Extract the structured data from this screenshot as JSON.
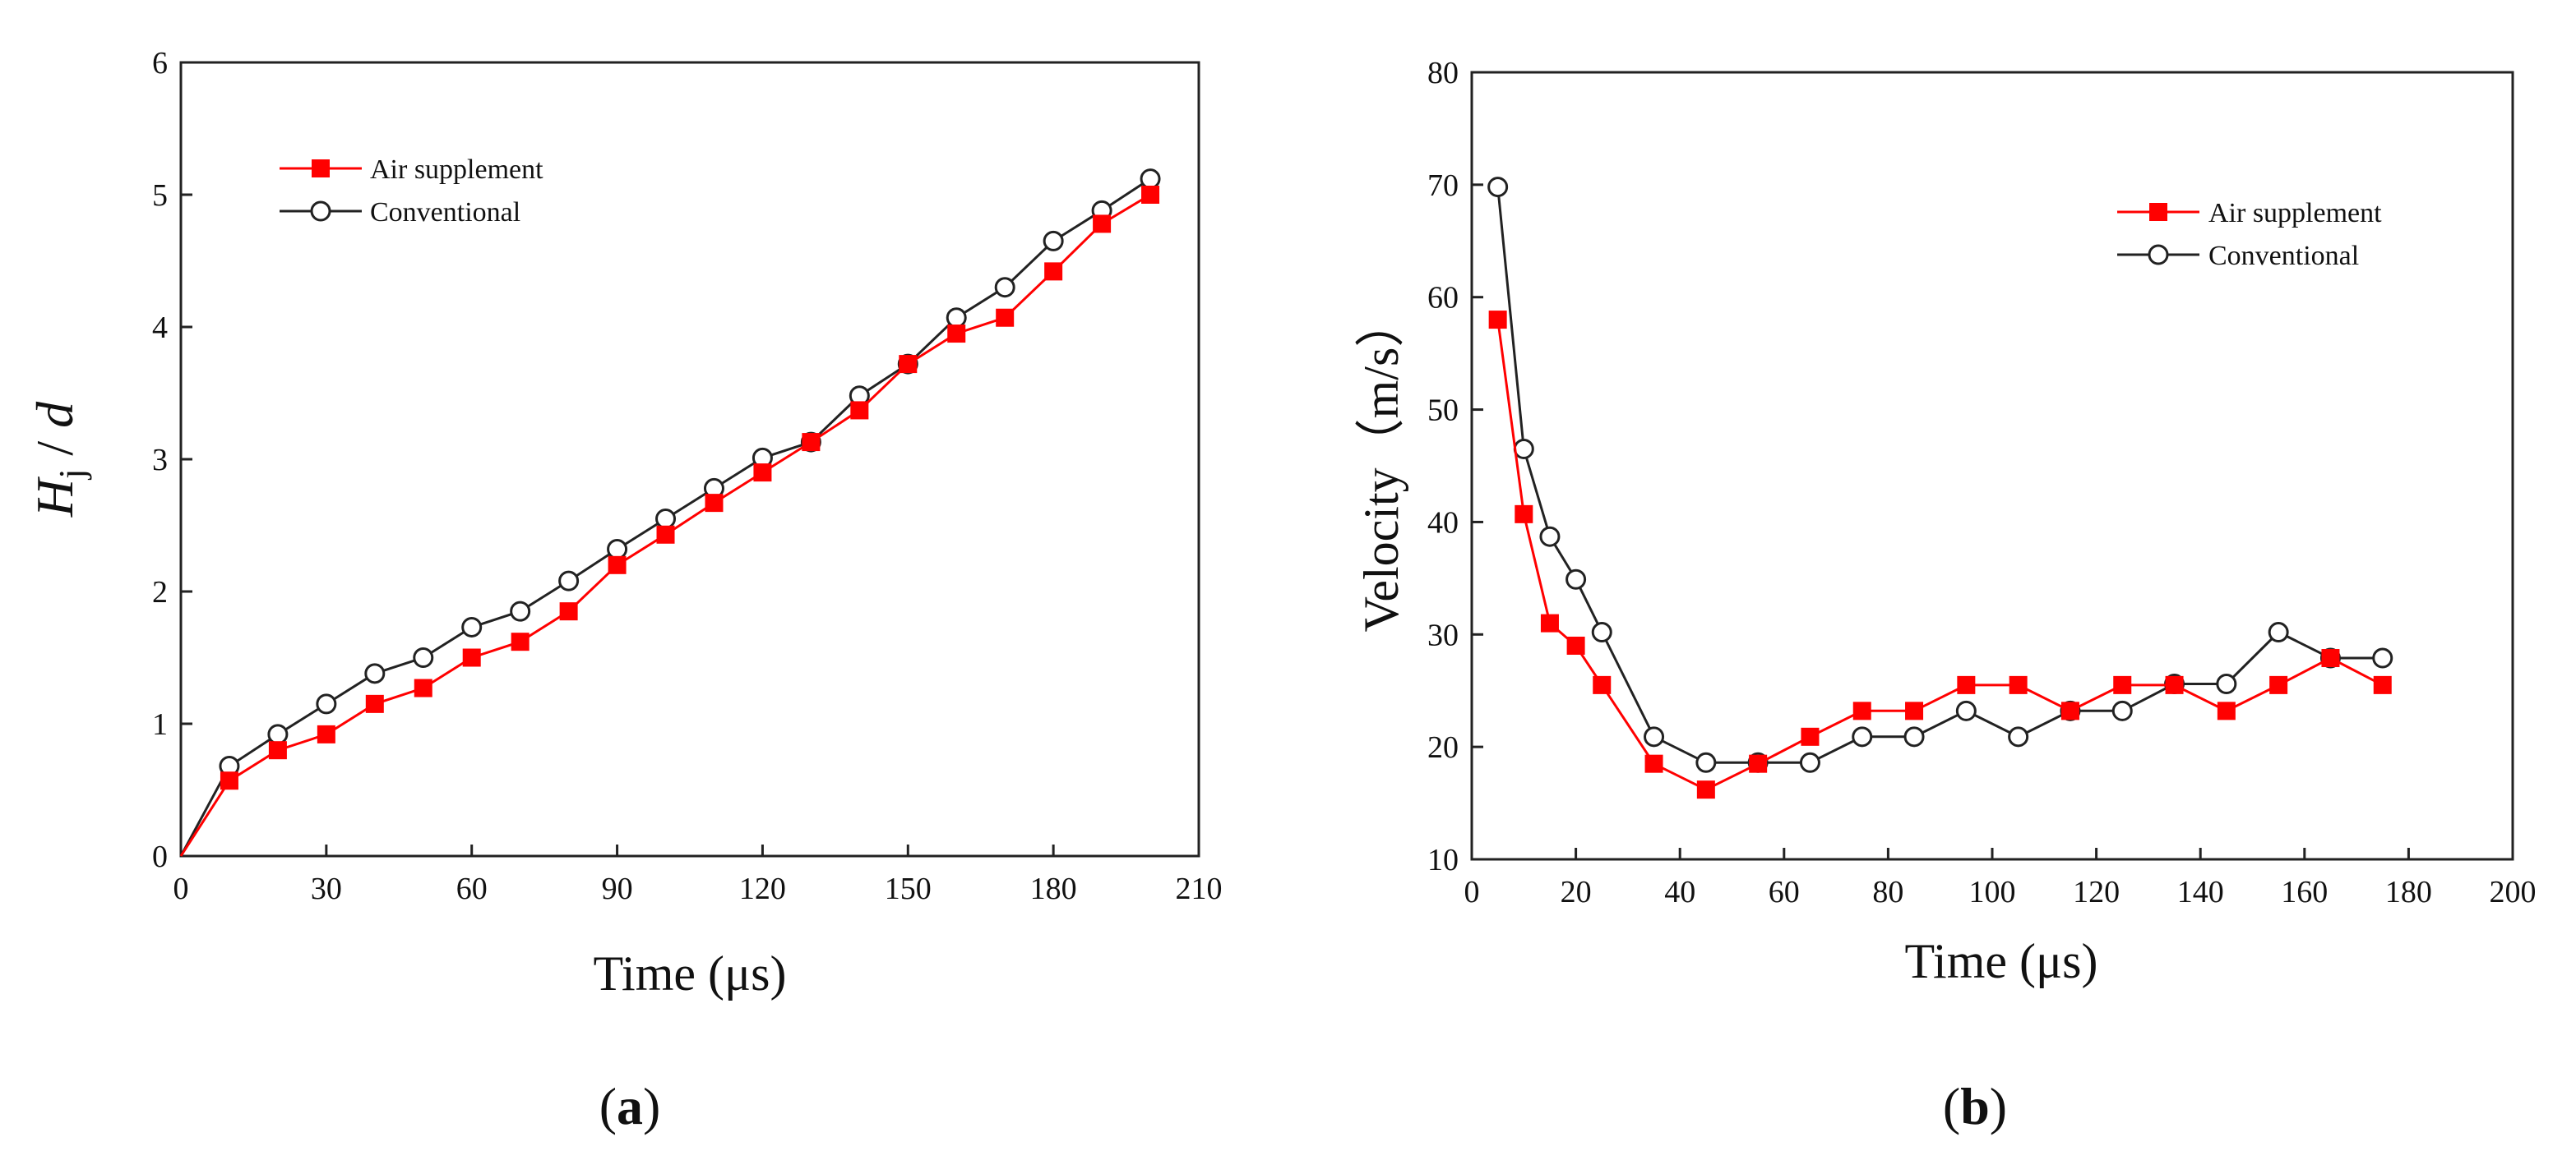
{
  "chart_data": [
    {
      "type": "line",
      "panel_label": "a",
      "xlabel": "Time (μs)",
      "ylabel_main": "H",
      "ylabel_sub": "j",
      "ylabel_rest": " / ",
      "ylabel_d": "d",
      "xlim": [
        0,
        210
      ],
      "ylim": [
        0,
        6
      ],
      "xticks": [
        0,
        30,
        60,
        90,
        120,
        150,
        180,
        210
      ],
      "yticks": [
        0,
        1,
        2,
        3,
        4,
        5,
        6
      ],
      "legend_position": "top-left",
      "series": [
        {
          "name": "Air supplement",
          "color": "#ff0000",
          "marker": "filled-square",
          "x": [
            0,
            10,
            20,
            30,
            40,
            50,
            60,
            70,
            80,
            90,
            100,
            110,
            120,
            130,
            140,
            150,
            160,
            170,
            180,
            190,
            200
          ],
          "y": [
            0,
            0.57,
            0.8,
            0.92,
            1.15,
            1.27,
            1.5,
            1.62,
            1.85,
            2.2,
            2.43,
            2.67,
            2.9,
            3.13,
            3.37,
            3.72,
            3.95,
            4.07,
            4.42,
            4.78,
            5.0
          ]
        },
        {
          "name": "Conventional",
          "color": "#222222",
          "marker": "open-circle",
          "x": [
            0,
            10,
            20,
            30,
            40,
            50,
            60,
            70,
            80,
            90,
            100,
            110,
            120,
            130,
            140,
            150,
            160,
            170,
            180,
            190,
            200
          ],
          "y": [
            0,
            0.68,
            0.92,
            1.15,
            1.38,
            1.5,
            1.73,
            1.85,
            2.08,
            2.32,
            2.55,
            2.78,
            3.01,
            3.13,
            3.48,
            3.72,
            4.07,
            4.3,
            4.65,
            4.88,
            5.12
          ]
        }
      ]
    },
    {
      "type": "line",
      "panel_label": "b",
      "xlabel": "Time (μs)",
      "ylabel": "Velocity（m/s）",
      "xlim": [
        0,
        200
      ],
      "ylim": [
        10,
        80
      ],
      "xticks": [
        0,
        20,
        40,
        60,
        80,
        100,
        120,
        140,
        160,
        180,
        200
      ],
      "yticks": [
        10,
        20,
        30,
        40,
        50,
        60,
        70,
        80
      ],
      "legend_position": "top-right",
      "series": [
        {
          "name": "Air supplement",
          "color": "#ff0000",
          "marker": "filled-square",
          "x": [
            5,
            10,
            15,
            20,
            25,
            35,
            45,
            55,
            65,
            75,
            85,
            95,
            105,
            115,
            125,
            135,
            145,
            155,
            165,
            175
          ],
          "y": [
            58,
            40.7,
            31,
            29,
            25.5,
            18.5,
            16.2,
            18.5,
            20.9,
            23.2,
            23.2,
            25.5,
            25.5,
            23.2,
            25.5,
            25.5,
            23.2,
            25.5,
            27.9,
            25.5
          ]
        },
        {
          "name": "Conventional",
          "color": "#222222",
          "marker": "open-circle",
          "x": [
            5,
            10,
            15,
            20,
            25,
            35,
            45,
            55,
            65,
            75,
            85,
            95,
            105,
            115,
            125,
            135,
            145,
            155,
            165,
            175
          ],
          "y": [
            69.8,
            46.5,
            38.7,
            34.9,
            30.2,
            20.9,
            18.6,
            18.6,
            18.6,
            20.9,
            20.9,
            23.2,
            20.9,
            23.2,
            23.2,
            25.6,
            25.6,
            30.2,
            27.9,
            27.9
          ]
        }
      ]
    }
  ]
}
